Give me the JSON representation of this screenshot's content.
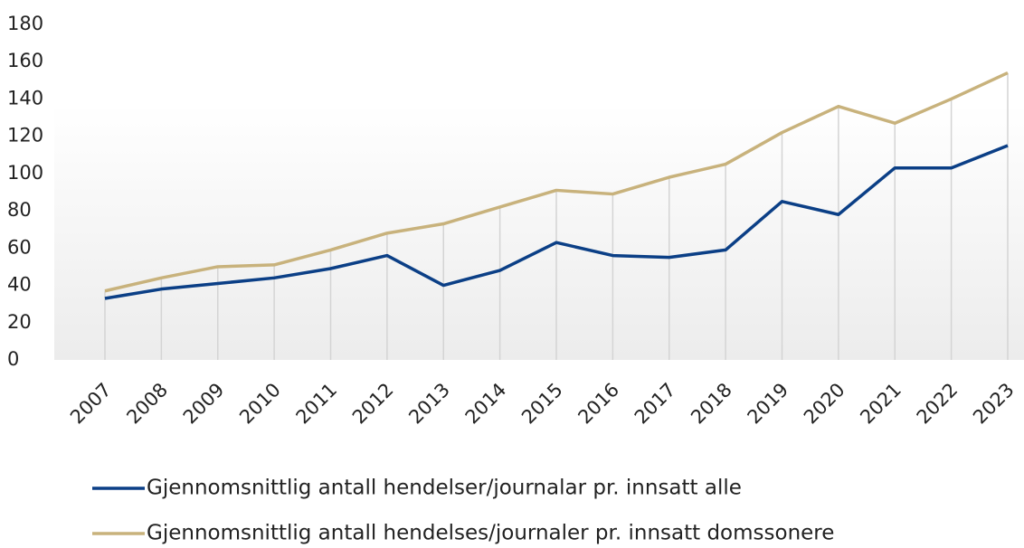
{
  "chart_data": {
    "type": "line",
    "categories": [
      "2007",
      "2008",
      "2009",
      "2010",
      "2011",
      "2012",
      "2013",
      "2014",
      "2015",
      "2016",
      "2017",
      "2018",
      "2019",
      "2020",
      "2021",
      "2022",
      "2023"
    ],
    "series": [
      {
        "name": "Gjennomsnittlig antall hendelser/journalar pr. innsatt alle",
        "color": "#0b3f86",
        "values": [
          33,
          38,
          41,
          44,
          49,
          56,
          40,
          48,
          63,
          56,
          55,
          59,
          85,
          78,
          103,
          103,
          115
        ]
      },
      {
        "name": "Gjennomsnittlig antall hendelses/journaler pr. innsatt domssonere",
        "color": "#c8b27c",
        "values": [
          37,
          44,
          50,
          51,
          59,
          68,
          73,
          82,
          91,
          89,
          98,
          105,
          122,
          136,
          127,
          140,
          154
        ]
      }
    ],
    "ylim": [
      0,
      180
    ],
    "yticks": [
      0,
      20,
      40,
      60,
      80,
      100,
      120,
      140,
      160,
      180
    ]
  }
}
